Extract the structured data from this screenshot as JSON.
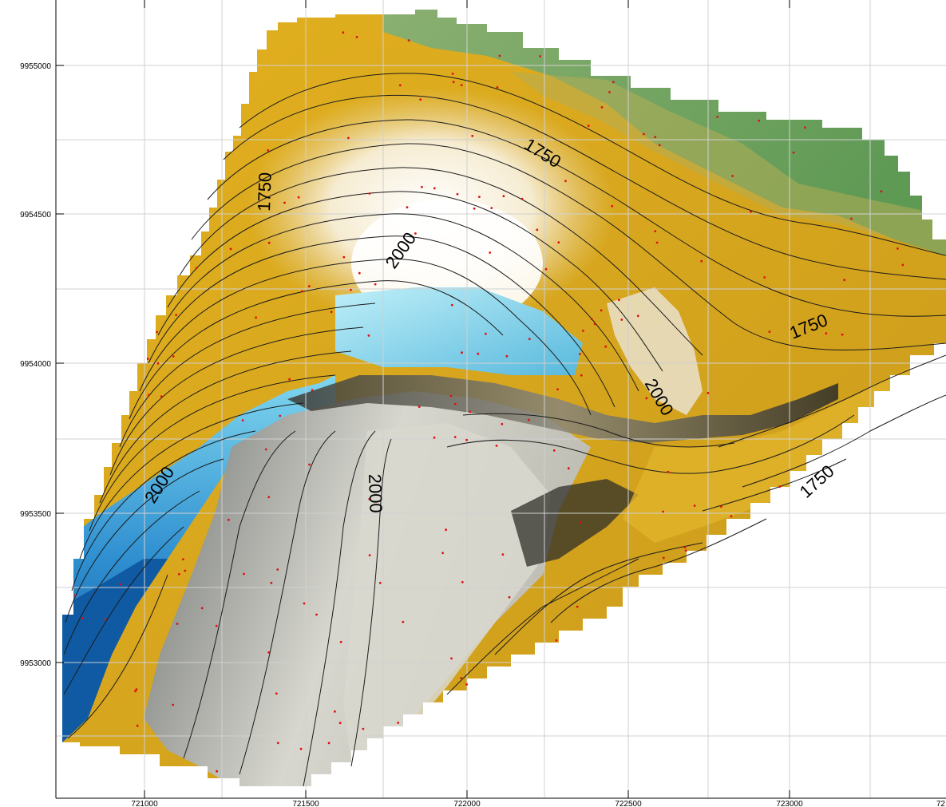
{
  "map": {
    "x_ticks": [
      {
        "value": "721000"
      },
      {
        "value": "721500"
      },
      {
        "value": "722000"
      },
      {
        "value": "722500"
      },
      {
        "value": "723000"
      },
      {
        "value": "72"
      }
    ],
    "y_ticks": [
      {
        "value": "9955000"
      },
      {
        "value": "9954500"
      },
      {
        "value": "9954000"
      },
      {
        "value": "9953500"
      },
      {
        "value": "9953000"
      }
    ],
    "contour_labels": [
      {
        "text": "1750"
      },
      {
        "text": "1750"
      },
      {
        "text": "2000"
      },
      {
        "text": "1750"
      },
      {
        "text": "2000"
      },
      {
        "text": "2000"
      },
      {
        "text": "2000"
      },
      {
        "text": "1750"
      }
    ],
    "colors": {
      "low": "#6aa65c",
      "mid": "#e3b11f",
      "high_cream": "#f4ead0",
      "peak": "#ffffff",
      "cyan": "#5bc8e8",
      "deep_blue": "#1466b0",
      "gray": "#9a9a94",
      "light_gray": "#cfcfc6",
      "dark": "#2f2f2a",
      "contour": "#1b1b1b",
      "grid": "#cccccc",
      "point": "#e01010"
    }
  }
}
